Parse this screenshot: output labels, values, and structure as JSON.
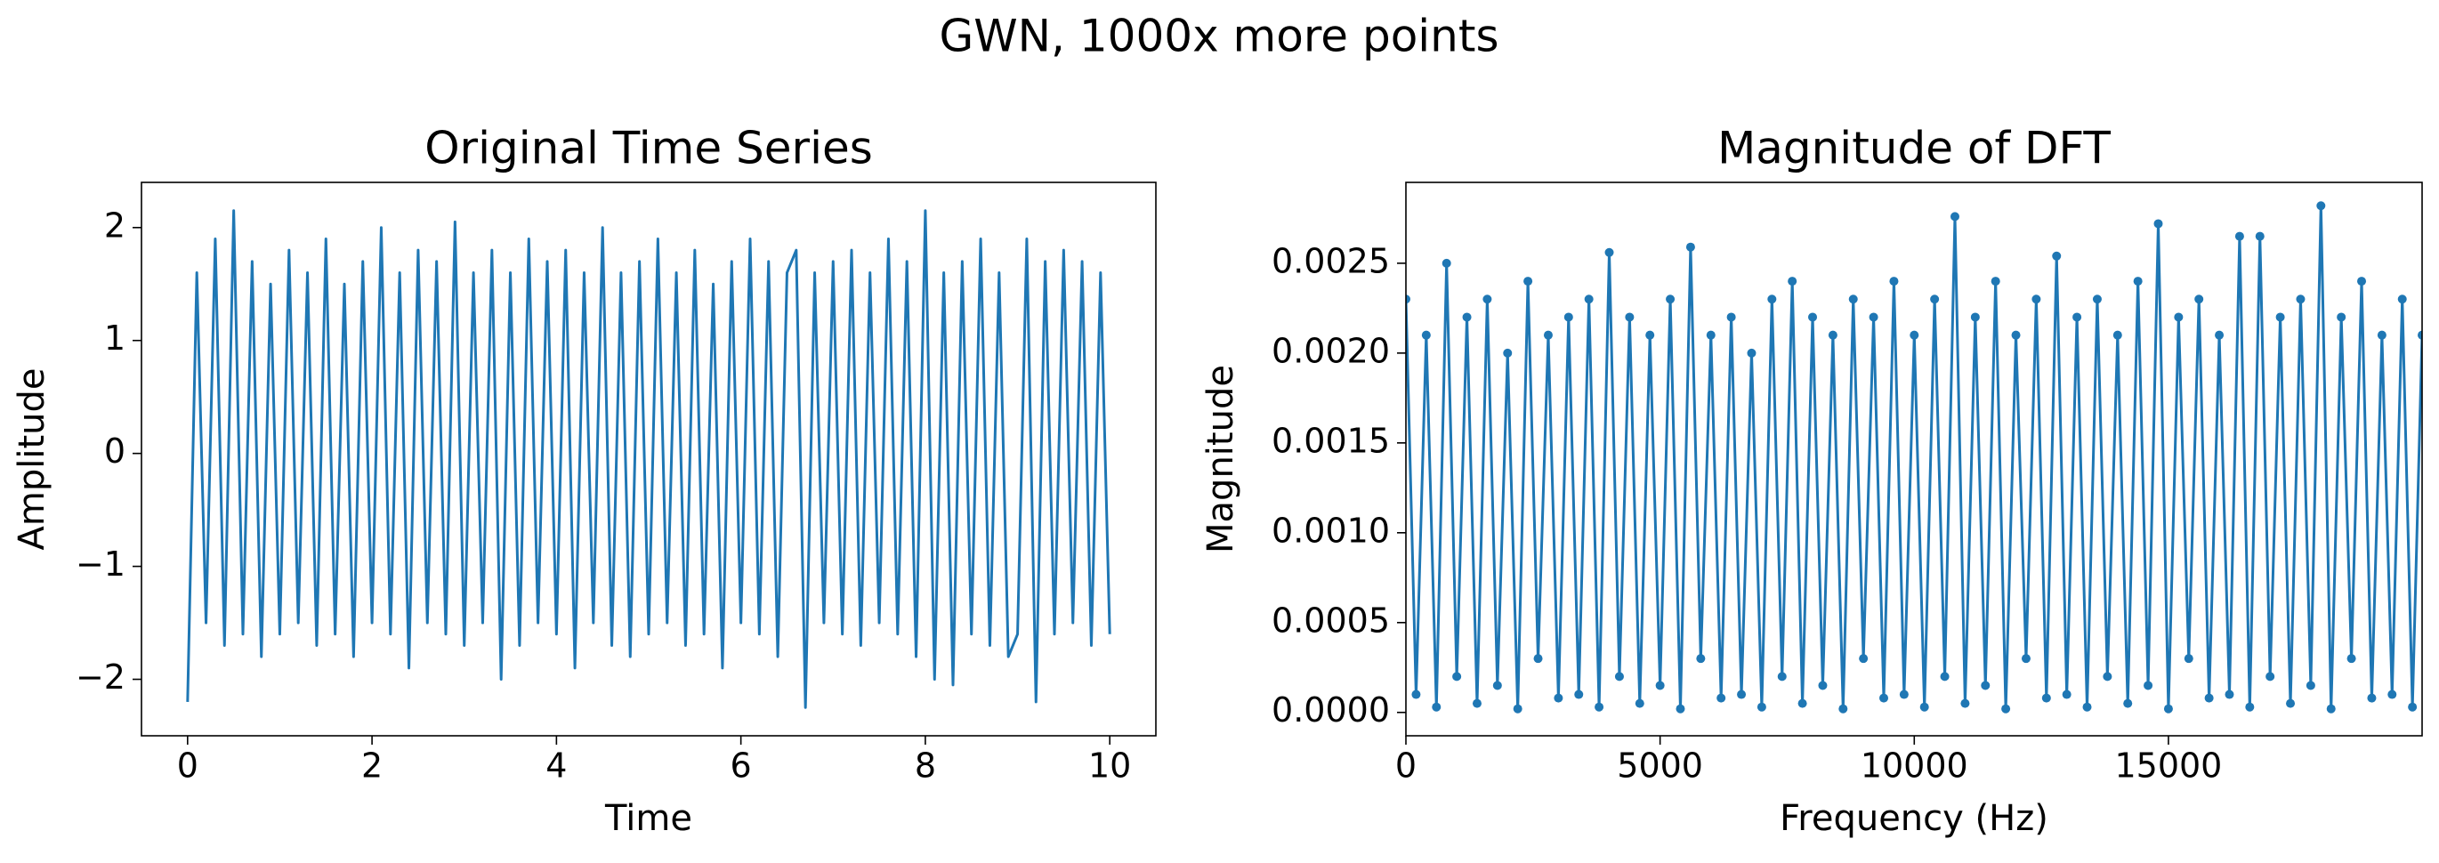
{
  "title": "GWN, 1000x more points",
  "chart_data": [
    {
      "type": "line",
      "title": "Original Time Series",
      "xlabel": "Time",
      "ylabel": "Amplitude",
      "color": "#1f77b4",
      "markers": false,
      "xlim": [
        -0.5,
        10.5
      ],
      "xticks": [
        0,
        2,
        4,
        6,
        8,
        10
      ],
      "ylim": [
        -2.5,
        2.4
      ],
      "yticks": [
        {
          "value": -2,
          "label": "−2"
        },
        {
          "value": -1,
          "label": "−1"
        },
        0,
        1,
        2
      ],
      "x": [
        0,
        0.1,
        0.2,
        0.3,
        0.4,
        0.5,
        0.6,
        0.7,
        0.8,
        0.9,
        1,
        1.1,
        1.2,
        1.3,
        1.4,
        1.5,
        1.6,
        1.7,
        1.8,
        1.9,
        2,
        2.1,
        2.2,
        2.3,
        2.4,
        2.5,
        2.6,
        2.7,
        2.8,
        2.9,
        3,
        3.1,
        3.2,
        3.3,
        3.4,
        3.5,
        3.6,
        3.7,
        3.8,
        3.9,
        4,
        4.1,
        4.2,
        4.3,
        4.4,
        4.5,
        4.6,
        4.7,
        4.8,
        4.9,
        5,
        5.1,
        5.2,
        5.3,
        5.4,
        5.5,
        5.6,
        5.7,
        5.8,
        5.9,
        6,
        6.1,
        6.2,
        6.3,
        6.4,
        6.5,
        6.6,
        6.7,
        6.8,
        6.9,
        7,
        7.1,
        7.2,
        7.3,
        7.4,
        7.5,
        7.6,
        7.7,
        7.8,
        7.9,
        8,
        8.1,
        8.2,
        8.3,
        8.4,
        8.5,
        8.6,
        8.7,
        8.8,
        8.9,
        9,
        9.1,
        9.2,
        9.3,
        9.4,
        9.5,
        9.6,
        9.7,
        9.8,
        9.9,
        10
      ],
      "values": [
        -2.2,
        1.6,
        -1.5,
        1.9,
        -1.7,
        2.15,
        -1.6,
        1.7,
        -1.8,
        1.5,
        -1.6,
        1.8,
        -1.5,
        1.6,
        -1.7,
        1.9,
        -1.6,
        1.5,
        -1.8,
        1.7,
        -1.5,
        2.0,
        -1.6,
        1.6,
        -1.9,
        1.8,
        -1.5,
        1.7,
        -1.6,
        2.05,
        -1.7,
        1.6,
        -1.5,
        1.8,
        -2.0,
        1.6,
        -1.7,
        1.9,
        -1.5,
        1.7,
        -1.6,
        1.8,
        -1.9,
        1.6,
        -1.5,
        2.0,
        -1.7,
        1.6,
        -1.8,
        1.7,
        -1.6,
        1.9,
        -1.5,
        1.6,
        -1.7,
        1.8,
        -1.6,
        1.5,
        -1.9,
        1.7,
        -1.5,
        1.9,
        -1.6,
        1.7,
        -1.8,
        1.6,
        1.8,
        -2.25,
        1.6,
        -1.5,
        1.7,
        -1.6,
        1.8,
        -1.7,
        1.6,
        -1.5,
        1.9,
        -1.6,
        1.7,
        -1.8,
        2.15,
        -2.0,
        1.6,
        -2.05,
        1.7,
        -1.6,
        1.9,
        -1.7,
        1.6,
        -1.8,
        -1.6,
        1.9,
        -2.2,
        1.7,
        -1.6,
        1.8,
        -1.5,
        1.7,
        -1.7,
        1.6,
        -1.6
      ]
    },
    {
      "type": "line",
      "title": "Magnitude of DFT",
      "xlabel": "Frequency (Hz)",
      "ylabel": "Magnitude",
      "color": "#1f77b4",
      "markers": true,
      "xlim": [
        0,
        19990
      ],
      "xticks": [
        0,
        5000,
        10000,
        15000
      ],
      "ylim": [
        -0.00013,
        0.00295
      ],
      "yticks": [
        {
          "value": 0,
          "label": "0.0000"
        },
        {
          "value": 0.0005,
          "label": "0.0005"
        },
        {
          "value": 0.001,
          "label": "0.0010"
        },
        {
          "value": 0.0015,
          "label": "0.0015"
        },
        {
          "value": 0.002,
          "label": "0.0020"
        },
        {
          "value": 0.0025,
          "label": "0.0025"
        }
      ],
      "x": [
        0,
        200,
        400,
        600,
        800,
        1000,
        1200,
        1400,
        1600,
        1800,
        2000,
        2200,
        2400,
        2600,
        2800,
        3000,
        3200,
        3400,
        3600,
        3800,
        4000,
        4200,
        4400,
        4600,
        4800,
        5000,
        5200,
        5400,
        5600,
        5800,
        6000,
        6200,
        6400,
        6600,
        6800,
        7000,
        7200,
        7400,
        7600,
        7800,
        8000,
        8200,
        8400,
        8600,
        8800,
        9000,
        9200,
        9400,
        9600,
        9800,
        10000,
        10200,
        10400,
        10600,
        10800,
        11000,
        11200,
        11400,
        11600,
        11800,
        12000,
        12200,
        12400,
        12600,
        12800,
        13000,
        13200,
        13400,
        13600,
        13800,
        14000,
        14200,
        14400,
        14600,
        14800,
        15000,
        15200,
        15400,
        15600,
        15800,
        16000,
        16200,
        16400,
        16600,
        16800,
        17000,
        17200,
        17400,
        17600,
        17800,
        18000,
        18200,
        18400,
        18600,
        18800,
        19000,
        19200,
        19400,
        19600,
        19800,
        19990
      ],
      "values": [
        0.0023,
        0.0001,
        0.0021,
        3e-05,
        0.0025,
        0.0002,
        0.0022,
        5e-05,
        0.0023,
        0.00015,
        0.002,
        2e-05,
        0.0024,
        0.0003,
        0.0021,
        8e-05,
        0.0022,
        0.0001,
        0.0023,
        3e-05,
        0.00256,
        0.0002,
        0.0022,
        5e-05,
        0.0021,
        0.00015,
        0.0023,
        2e-05,
        0.00259,
        0.0003,
        0.0021,
        8e-05,
        0.0022,
        0.0001,
        0.002,
        3e-05,
        0.0023,
        0.0002,
        0.0024,
        5e-05,
        0.0022,
        0.00015,
        0.0021,
        2e-05,
        0.0023,
        0.0003,
        0.0022,
        8e-05,
        0.0024,
        0.0001,
        0.0021,
        3e-05,
        0.0023,
        0.0002,
        0.00276,
        5e-05,
        0.0022,
        0.00015,
        0.0024,
        2e-05,
        0.0021,
        0.0003,
        0.0023,
        8e-05,
        0.00254,
        0.0001,
        0.0022,
        3e-05,
        0.0023,
        0.0002,
        0.0021,
        5e-05,
        0.0024,
        0.00015,
        0.00272,
        2e-05,
        0.0022,
        0.0003,
        0.0023,
        8e-05,
        0.0021,
        0.0001,
        0.00265,
        3e-05,
        0.00265,
        0.0002,
        0.0022,
        5e-05,
        0.0023,
        0.00015,
        0.00282,
        2e-05,
        0.0022,
        0.0003,
        0.0024,
        8e-05,
        0.0021,
        0.0001,
        0.0023,
        3e-05,
        0.0021
      ]
    }
  ]
}
